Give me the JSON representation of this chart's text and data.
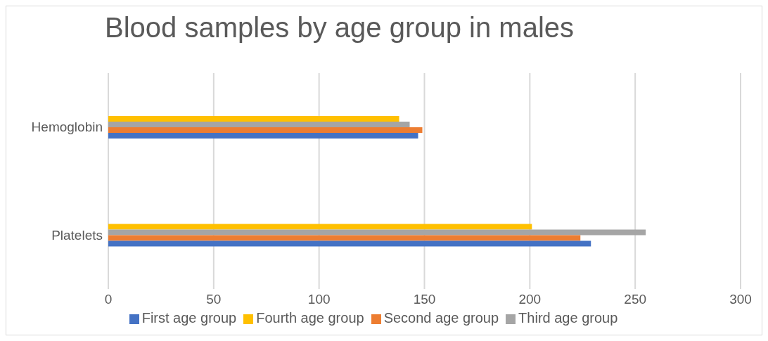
{
  "chart_data": {
    "type": "bar",
    "orientation": "horizontal",
    "title": "Blood samples by age group in males",
    "categories": [
      "Hemoglobin",
      "Platelets"
    ],
    "series": [
      {
        "name": "Fourth age group",
        "color": "#ffc000",
        "values": [
          138,
          201
        ]
      },
      {
        "name": "Third age group",
        "color": "#a5a5a5",
        "values": [
          143,
          255
        ]
      },
      {
        "name": "Second age group",
        "color": "#ed7d31",
        "values": [
          149,
          224
        ]
      },
      {
        "name": "First age group",
        "color": "#4472c4",
        "values": [
          147,
          229
        ]
      }
    ],
    "xlim": [
      0,
      300
    ],
    "xticks": [
      0,
      50,
      100,
      150,
      200,
      250,
      300
    ],
    "grid": "x",
    "legend": "bottom"
  }
}
